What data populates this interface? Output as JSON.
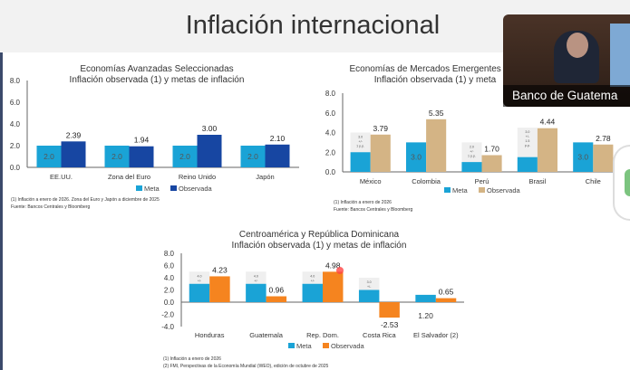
{
  "slide_title": "Inflación internacional",
  "webcam": {
    "caption": "Banco de Guatema"
  },
  "colors": {
    "meta": "#1aa3d6",
    "obs_adv": "#1746a2",
    "obs_em": "#d4b485",
    "obs_ca": "#f5841f",
    "band": "#efefef"
  },
  "legend": {
    "meta": "Meta",
    "observada": "Observada"
  },
  "chart_data": [
    {
      "type": "bar",
      "title": [
        "Economías Avanzadas Seleccionadas",
        "Inflación observada (1) y metas de inflación"
      ],
      "categories": [
        "EE.UU.",
        "Zona del Euro",
        "Reino Unido",
        "Japón"
      ],
      "series": [
        {
          "name": "Meta",
          "values": [
            2.0,
            2.0,
            2.0,
            2.0
          ],
          "labels": [
            "2.0",
            "2.0",
            "2.0",
            "2.0"
          ]
        },
        {
          "name": "Observada",
          "values": [
            2.39,
            1.94,
            3.0,
            2.1
          ],
          "labels": [
            "2.39",
            "1.94",
            "3.00",
            "2.10"
          ]
        }
      ],
      "bands": [
        null,
        null,
        null,
        null
      ],
      "ylim": [
        0,
        8
      ],
      "yticks": [
        "0.0",
        "2.0",
        "4.0",
        "6.0",
        "8.0"
      ],
      "legend_position": "bottom",
      "notes": [
        "(1) Inflación a enero de 2026. Zona del Euro y Japón a diciembre de 2025",
        "Fuente: Bancos Centrales y Bloomberg"
      ]
    },
    {
      "type": "bar",
      "title": [
        "Economías de Mercados Emergentes y en",
        "Inflación observada (1) y meta"
      ],
      "categories": [
        "México",
        "Colombia",
        "Perú",
        "Brasil",
        "Chile"
      ],
      "series": [
        {
          "name": "Meta",
          "values": [
            2.0,
            3.0,
            1.0,
            1.5,
            3.0
          ],
          "labels": [
            "",
            "3.0",
            "",
            "",
            "3.0"
          ]
        },
        {
          "name": "Observada",
          "values": [
            3.79,
            5.35,
            1.7,
            4.44,
            2.78
          ],
          "labels": [
            "3.79",
            "5.35",
            "1.70",
            "4.44",
            "2.78"
          ]
        }
      ],
      "bands": [
        {
          "low": 2.0,
          "high": 4.0,
          "text": [
            "3.0",
            "+/-",
            "1 p.p."
          ]
        },
        null,
        {
          "low": 1.0,
          "high": 3.0,
          "text": [
            "2.0",
            "+/-",
            "1 p.p."
          ]
        },
        {
          "low": 1.5,
          "high": 4.5,
          "text": [
            "3.0",
            "+/-",
            "1.5",
            "p.p."
          ]
        },
        null
      ],
      "ylim": [
        0,
        8
      ],
      "yticks": [
        "0.0",
        "2.0",
        "4.0",
        "6.0",
        "8.0"
      ],
      "legend_position": "bottom",
      "notes": [
        "(1) Inflación a enero de 2026",
        "Fuente: Bancos Centrales y Bloomberg"
      ]
    },
    {
      "type": "bar",
      "title": [
        "Centroamérica y República Dominicana",
        "Inflación observada (1) y metas de inflación"
      ],
      "categories": [
        "Honduras",
        "Guatemala",
        "Rep. Dom.",
        "Costa Rica",
        "El Salvador (2)"
      ],
      "series": [
        {
          "name": "Meta",
          "values": [
            3.0,
            3.0,
            3.0,
            2.0,
            1.2
          ],
          "labels": [
            "",
            "",
            "",
            "",
            "1.20"
          ]
        },
        {
          "name": "Observada",
          "values": [
            4.23,
            0.96,
            4.98,
            -2.53,
            0.65
          ],
          "labels": [
            "4.23",
            "0.96",
            "4.98",
            "-2.53",
            "0.65"
          ]
        }
      ],
      "bands": [
        {
          "low": 3.0,
          "high": 5.0,
          "text": [
            "4.0",
            "+/-",
            "1 p.p."
          ]
        },
        {
          "low": 3.0,
          "high": 5.0,
          "text": [
            "4.0",
            "+/-",
            "1 p.p."
          ]
        },
        {
          "low": 3.0,
          "high": 5.0,
          "text": [
            "4.0",
            "+/-",
            "1 p.p."
          ]
        },
        {
          "low": 2.0,
          "high": 4.0,
          "text": [
            "3.0",
            "+/-",
            "1 p.p."
          ]
        },
        null
      ],
      "ylim": [
        -4,
        8
      ],
      "yticks": [
        "-4.0",
        "-2.0",
        "0.0",
        "2.0",
        "4.0",
        "6.0",
        "8.0"
      ],
      "legend_position": "bottom",
      "notes": [
        "(1) Inflación a enero de 2026",
        "(2) FMI, Perspectivas de la Economía Mundial (WEO), edición de octubre de 2025"
      ]
    }
  ]
}
